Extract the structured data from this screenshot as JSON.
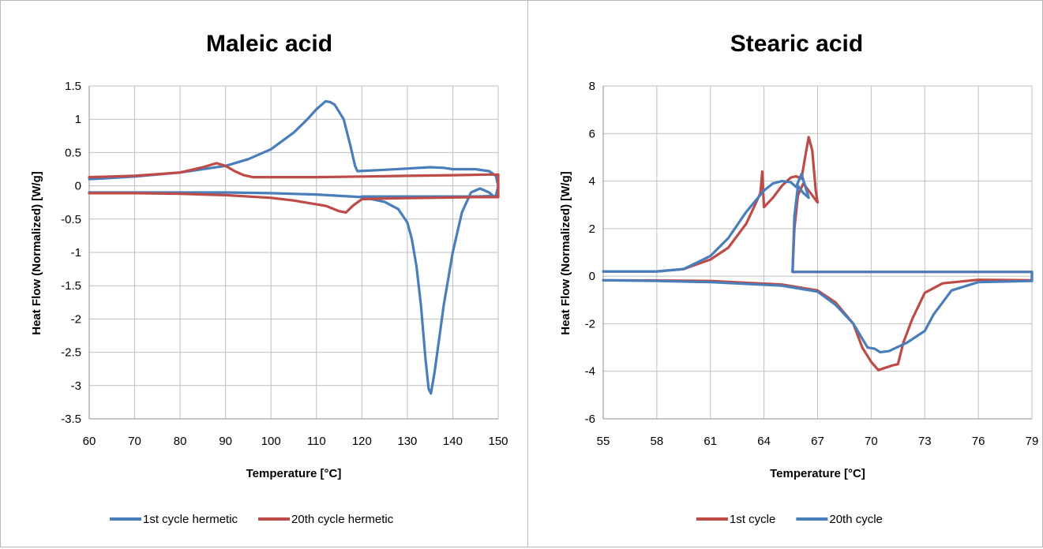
{
  "chart_data": [
    {
      "type": "line",
      "title": "Maleic acid",
      "xlabel": "Temperature [°C]",
      "ylabel": "Heat Flow (Normalized) [W/g]",
      "xlim": [
        60,
        150
      ],
      "ylim": [
        -3.5,
        1.5
      ],
      "x_ticks": [
        "60",
        "70",
        "80",
        "90",
        "100",
        "110",
        "120",
        "130",
        "140",
        "150"
      ],
      "y_ticks": [
        "1.5",
        "1",
        "0.5",
        "0",
        "-0.5",
        "-1",
        "-1.5",
        "-2",
        "-2.5",
        "-3",
        "-3.5"
      ],
      "grid": true,
      "legend_position": "bottom",
      "series": [
        {
          "name": "1st cycle hermetic",
          "color": "#4a7ebb",
          "points": [
            [
              60,
              0.1
            ],
            [
              70,
              0.14
            ],
            [
              80,
              0.2
            ],
            [
              90,
              0.3
            ],
            [
              95,
              0.4
            ],
            [
              100,
              0.55
            ],
            [
              105,
              0.8
            ],
            [
              108,
              1.0
            ],
            [
              110,
              1.15
            ],
            [
              112,
              1.27
            ],
            [
              113,
              1.26
            ],
            [
              114,
              1.22
            ],
            [
              116,
              1.0
            ],
            [
              117.5,
              0.6
            ],
            [
              118.5,
              0.3
            ],
            [
              119,
              0.22
            ],
            [
              125,
              0.24
            ],
            [
              130,
              0.26
            ],
            [
              135,
              0.28
            ],
            [
              138,
              0.27
            ],
            [
              140,
              0.25
            ],
            [
              145,
              0.25
            ],
            [
              148,
              0.22
            ],
            [
              149.5,
              0.15
            ],
            [
              150,
              0
            ],
            [
              149.5,
              -0.15
            ],
            [
              145,
              -0.16
            ],
            [
              130,
              -0.16
            ],
            [
              120,
              -0.16
            ],
            [
              149,
              -0.16
            ],
            [
              148,
              -0.1
            ],
            [
              146,
              -0.04
            ],
            [
              144,
              -0.1
            ],
            [
              142,
              -0.4
            ],
            [
              140,
              -1.0
            ],
            [
              138,
              -1.8
            ],
            [
              137,
              -2.3
            ],
            [
              136,
              -2.8
            ],
            [
              135.2,
              -3.12
            ],
            [
              134.7,
              -3.05
            ],
            [
              134,
              -2.6
            ],
            [
              133,
              -1.8
            ],
            [
              132,
              -1.2
            ],
            [
              131,
              -0.8
            ],
            [
              130,
              -0.55
            ],
            [
              128,
              -0.35
            ],
            [
              125,
              -0.24
            ],
            [
              120,
              -0.17
            ],
            [
              110,
              -0.13
            ],
            [
              100,
              -0.11
            ],
            [
              90,
              -0.1
            ],
            [
              80,
              -0.1
            ],
            [
              70,
              -0.1
            ],
            [
              60,
              -0.1
            ]
          ]
        },
        {
          "name": "20th cycle hermetic",
          "color": "#be4b48",
          "points": [
            [
              60,
              0.13
            ],
            [
              70,
              0.15
            ],
            [
              80,
              0.2
            ],
            [
              85,
              0.28
            ],
            [
              88,
              0.34
            ],
            [
              90,
              0.3
            ],
            [
              92,
              0.22
            ],
            [
              94,
              0.16
            ],
            [
              96,
              0.13
            ],
            [
              110,
              0.13
            ],
            [
              120,
              0.14
            ],
            [
              130,
              0.15
            ],
            [
              140,
              0.16
            ],
            [
              148,
              0.17
            ],
            [
              150,
              0.17
            ],
            [
              150,
              -0.17
            ],
            [
              145,
              -0.17
            ],
            [
              135,
              -0.18
            ],
            [
              125,
              -0.19
            ],
            [
              120,
              -0.2
            ],
            [
              118,
              -0.3
            ],
            [
              116.5,
              -0.4
            ],
            [
              115,
              -0.38
            ],
            [
              112,
              -0.3
            ],
            [
              105,
              -0.22
            ],
            [
              100,
              -0.18
            ],
            [
              90,
              -0.14
            ],
            [
              80,
              -0.12
            ],
            [
              70,
              -0.11
            ],
            [
              60,
              -0.11
            ]
          ]
        }
      ]
    },
    {
      "type": "line",
      "title": "Stearic acid",
      "xlabel": "Temperature [°C]",
      "ylabel": "Heat Flow (Normalized) [W/g]",
      "xlim": [
        55,
        79
      ],
      "ylim": [
        -6,
        8
      ],
      "x_ticks": [
        "55",
        "58",
        "61",
        "64",
        "67",
        "70",
        "73",
        "76",
        "79"
      ],
      "y_ticks": [
        "8",
        "6",
        "4",
        "2",
        "0",
        "-2",
        "-4",
        "-6"
      ],
      "grid": true,
      "legend_position": "bottom",
      "series": [
        {
          "name": "1st cycle",
          "color": "#be4b48",
          "points": [
            [
              55,
              0.2
            ],
            [
              58,
              0.2
            ],
            [
              59.5,
              0.3
            ],
            [
              61,
              0.7
            ],
            [
              62,
              1.2
            ],
            [
              63,
              2.2
            ],
            [
              63.5,
              3.0
            ],
            [
              63.8,
              3.5
            ],
            [
              63.9,
              4.4
            ],
            [
              64,
              2.9
            ],
            [
              64.5,
              3.3
            ],
            [
              65,
              3.8
            ],
            [
              65.5,
              4.15
            ],
            [
              65.8,
              4.2
            ],
            [
              66.1,
              4.1
            ],
            [
              66.3,
              5.0
            ],
            [
              66.5,
              5.85
            ],
            [
              66.7,
              5.3
            ],
            [
              66.9,
              3.6
            ],
            [
              67,
              3.1
            ],
            [
              66.6,
              3.5
            ],
            [
              66.2,
              3.9
            ],
            [
              65.9,
              3.4
            ],
            [
              65.7,
              2.0
            ],
            [
              65.6,
              0.18
            ],
            [
              68,
              0.18
            ],
            [
              79,
              0.18
            ],
            [
              79,
              -0.17
            ],
            [
              76,
              -0.15
            ],
            [
              74,
              -0.3
            ],
            [
              73,
              -0.7
            ],
            [
              72.3,
              -1.8
            ],
            [
              71.8,
              -2.8
            ],
            [
              71.5,
              -3.7
            ],
            [
              71.2,
              -3.75
            ],
            [
              70.8,
              -3.85
            ],
            [
              70.4,
              -3.95
            ],
            [
              70,
              -3.6
            ],
            [
              69.5,
              -3.0
            ],
            [
              69,
              -2.0
            ],
            [
              68,
              -1.1
            ],
            [
              67,
              -0.6
            ],
            [
              65,
              -0.35
            ],
            [
              61,
              -0.2
            ],
            [
              58,
              -0.18
            ],
            [
              55,
              -0.17
            ]
          ]
        },
        {
          "name": "20th cycle",
          "color": "#4a7ebb",
          "points": [
            [
              55,
              0.2
            ],
            [
              58,
              0.2
            ],
            [
              59.5,
              0.3
            ],
            [
              61,
              0.85
            ],
            [
              62,
              1.6
            ],
            [
              63,
              2.7
            ],
            [
              64,
              3.6
            ],
            [
              64.5,
              3.9
            ],
            [
              65,
              4.0
            ],
            [
              65.5,
              3.95
            ],
            [
              65.8,
              3.75
            ],
            [
              66.1,
              4.3
            ],
            [
              66.3,
              3.8
            ],
            [
              66.5,
              3.3
            ],
            [
              66.2,
              3.5
            ],
            [
              65.9,
              3.8
            ],
            [
              65.7,
              2.5
            ],
            [
              65.6,
              0.18
            ],
            [
              68,
              0.18
            ],
            [
              79,
              0.18
            ],
            [
              79,
              -0.2
            ],
            [
              76,
              -0.25
            ],
            [
              74.5,
              -0.6
            ],
            [
              73.5,
              -1.6
            ],
            [
              73,
              -2.3
            ],
            [
              72,
              -2.8
            ],
            [
              71,
              -3.15
            ],
            [
              70.5,
              -3.2
            ],
            [
              70.2,
              -3.05
            ],
            [
              69.8,
              -3.0
            ],
            [
              69,
              -2.0
            ],
            [
              68,
              -1.2
            ],
            [
              67,
              -0.65
            ],
            [
              65,
              -0.4
            ],
            [
              61,
              -0.25
            ],
            [
              58,
              -0.2
            ],
            [
              55,
              -0.17
            ]
          ]
        }
      ]
    }
  ]
}
